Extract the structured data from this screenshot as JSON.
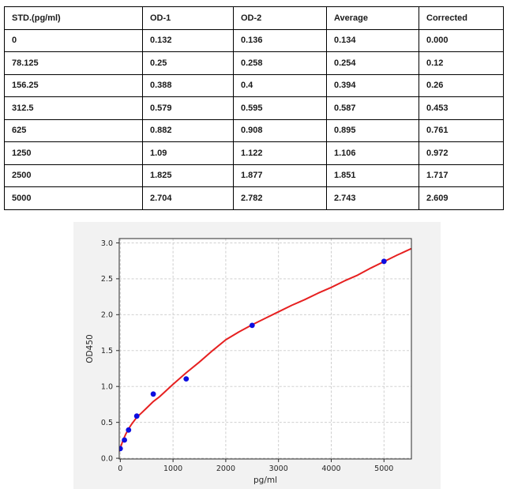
{
  "table": {
    "headers": [
      "STD.(pg/ml)",
      "OD-1",
      "OD-2",
      "Average",
      "Corrected"
    ],
    "rows": [
      [
        "0",
        "0.132",
        "0.136",
        "0.134",
        "0.000"
      ],
      [
        "78.125",
        "0.25",
        "0.258",
        "0.254",
        "0.12"
      ],
      [
        "156.25",
        "0.388",
        "0.4",
        "0.394",
        "0.26"
      ],
      [
        "312.5",
        "0.579",
        "0.595",
        "0.587",
        "0.453"
      ],
      [
        "625",
        "0.882",
        "0.908",
        "0.895",
        "0.761"
      ],
      [
        "1250",
        "1.09",
        "1.122",
        "1.106",
        "0.972"
      ],
      [
        "2500",
        "1.825",
        "1.877",
        "1.851",
        "1.717"
      ],
      [
        "5000",
        "2.704",
        "2.782",
        "2.743",
        "2.609"
      ]
    ]
  },
  "chart_data": {
    "type": "scatter",
    "title": "",
    "xlabel": "pg/ml",
    "ylabel": "OD450",
    "xlim": [
      -20,
      5520
    ],
    "ylim": [
      -0.01,
      3.06
    ],
    "x_tick_labels": [
      "0",
      "1000",
      "2000",
      "3000",
      "4000",
      "5000"
    ],
    "y_tick_labels": [
      "0.0",
      "0.5",
      "1.0",
      "1.5",
      "2.0",
      "2.5",
      "3.0"
    ],
    "grid": "dashed",
    "legend": "none",
    "colors": {
      "figure_bg": "#f2f2f2",
      "axes_bg": "#ffffff",
      "grid": "#c9c9c9",
      "spine": "#2b2b2b",
      "tick_text": "#262626",
      "point": "#0d0de0",
      "curve": "#e62020"
    },
    "series": [
      {
        "name": "standard-points",
        "type": "scatter",
        "x": [
          0,
          78.125,
          156.25,
          312.5,
          625,
          1250,
          2500,
          5000
        ],
        "y": [
          0.134,
          0.254,
          0.394,
          0.587,
          0.895,
          1.106,
          1.851,
          2.743
        ]
      },
      {
        "name": "fitted-curve",
        "type": "line",
        "x": [
          -20,
          50,
          100,
          156,
          220,
          312,
          400,
          500,
          625,
          750,
          1000,
          1250,
          1500,
          1750,
          2000,
          2250,
          2500,
          2750,
          3000,
          3250,
          3500,
          3750,
          4000,
          4250,
          4500,
          4750,
          5000,
          5250,
          5520
        ],
        "y": [
          0.1,
          0.25,
          0.33,
          0.41,
          0.48,
          0.57,
          0.63,
          0.7,
          0.79,
          0.86,
          1.03,
          1.19,
          1.34,
          1.5,
          1.65,
          1.76,
          1.86,
          1.95,
          2.04,
          2.13,
          2.21,
          2.3,
          2.38,
          2.47,
          2.55,
          2.65,
          2.74,
          2.83,
          2.92
        ]
      }
    ]
  }
}
